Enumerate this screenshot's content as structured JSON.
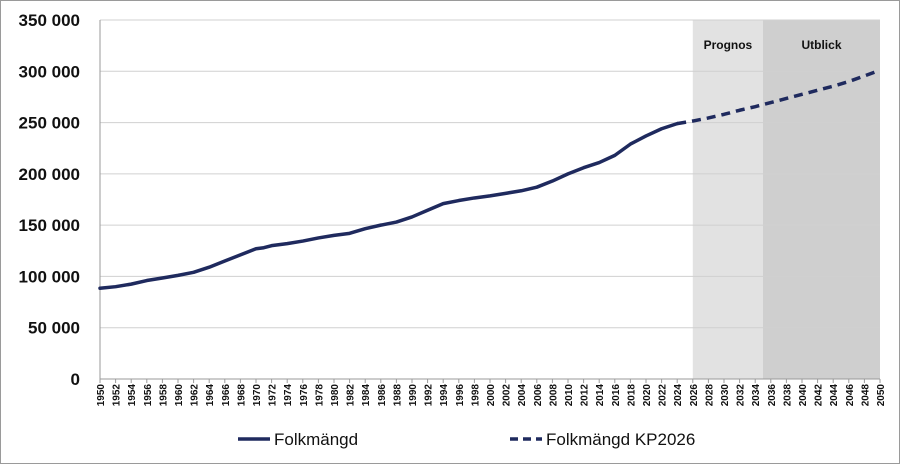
{
  "chart_data": {
    "type": "line",
    "title": "",
    "xlabel": "",
    "ylabel": "",
    "xlim": [
      1950,
      2050
    ],
    "ylim": [
      0,
      350000
    ],
    "yticks": [
      0,
      50000,
      100000,
      150000,
      200000,
      250000,
      300000,
      350000
    ],
    "ytick_labels": [
      "0",
      "50 000",
      "100 000",
      "150 000",
      "200 000",
      "250 000",
      "300 000",
      "350 000"
    ],
    "xticks": [
      1950,
      1952,
      1954,
      1956,
      1958,
      1960,
      1962,
      1964,
      1966,
      1968,
      1970,
      1972,
      1974,
      1976,
      1978,
      1980,
      1982,
      1984,
      1986,
      1988,
      1990,
      1992,
      1994,
      1996,
      1998,
      2000,
      2002,
      2004,
      2006,
      2008,
      2010,
      2012,
      2014,
      2016,
      2018,
      2020,
      2022,
      2024,
      2026,
      2028,
      2030,
      2032,
      2034,
      2036,
      2038,
      2040,
      2042,
      2044,
      2046,
      2048,
      2050
    ],
    "grid": "horizontal",
    "legend_position": "bottom",
    "regions": [
      {
        "label": "Prognos",
        "from": 2026,
        "to": 2035,
        "color": "#e2e2e2"
      },
      {
        "label": "Utblick",
        "from": 2035,
        "to": 2050,
        "color": "#cfcfcf"
      }
    ],
    "series": [
      {
        "name": "Folkmängd",
        "style": "solid",
        "color": "#1f2a5e",
        "x": [
          1950,
          1952,
          1954,
          1956,
          1958,
          1960,
          1962,
          1964,
          1966,
          1968,
          1970,
          1971,
          1972,
          1974,
          1976,
          1978,
          1980,
          1982,
          1984,
          1986,
          1988,
          1990,
          1992,
          1994,
          1996,
          1998,
          2000,
          2002,
          2004,
          2006,
          2008,
          2010,
          2012,
          2014,
          2016,
          2018,
          2020,
          2022,
          2024
        ],
        "values": [
          88500,
          90000,
          92500,
          96000,
          98500,
          101000,
          104000,
          109000,
          115000,
          121000,
          127000,
          128000,
          130000,
          132000,
          134500,
          137500,
          140000,
          142000,
          146500,
          150000,
          153000,
          158000,
          164500,
          171000,
          174000,
          176500,
          178500,
          181000,
          183500,
          187000,
          193000,
          200000,
          206000,
          211000,
          218000,
          229000,
          237000,
          244000,
          249000
        ]
      },
      {
        "name": "Folkmängd KP2026",
        "style": "dashed",
        "color": "#1f2a5e",
        "x": [
          2024,
          2026,
          2028,
          2030,
          2032,
          2034,
          2036,
          2038,
          2040,
          2042,
          2044,
          2046,
          2048,
          2050
        ],
        "values": [
          249000,
          251500,
          254500,
          258000,
          262000,
          265500,
          269500,
          273500,
          277500,
          281500,
          285500,
          290000,
          295500,
          301000
        ]
      }
    ]
  }
}
